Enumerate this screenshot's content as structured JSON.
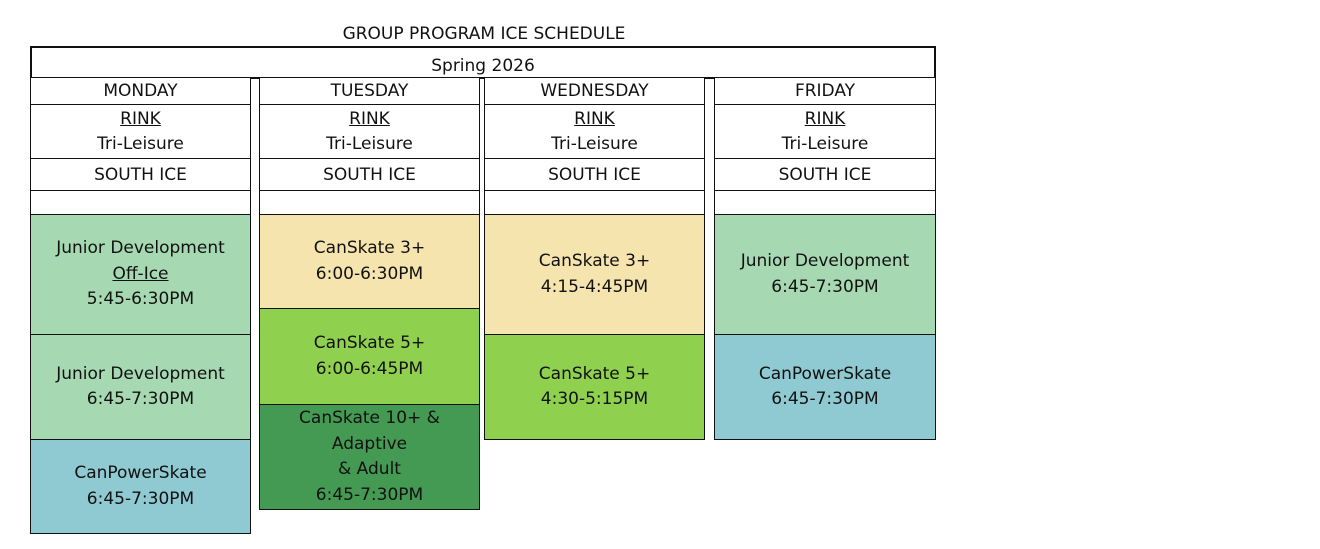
{
  "schedule": {
    "title": "GROUP PROGRAM ICE SCHEDULE",
    "season": "Spring 2026"
  },
  "columns": [
    {
      "day": "MONDAY",
      "rink_label": "RINK",
      "rink": "Tri-Leisure",
      "ice": "SOUTH ICE",
      "sessions": [
        {
          "name": "Junior Development",
          "note": "Off-Ice",
          "time": "5:45-6:30PM",
          "color": "#a6d9b2"
        },
        {
          "name": "Junior Development",
          "time": "6:45-7:30PM",
          "color": "#a6d9b2"
        },
        {
          "name": "CanPowerSkate",
          "time": "6:45-7:30PM",
          "color": "#8fc9d2"
        }
      ]
    },
    {
      "day": "TUESDAY",
      "rink_label": "RINK",
      "rink": "Tri-Leisure",
      "ice": "SOUTH ICE",
      "sessions": [
        {
          "name": "CanSkate 3+",
          "time": "6:00-6:30PM",
          "color": "#f6e4ae"
        },
        {
          "name": "CanSkate 5+",
          "time": "6:00-6:45PM",
          "color": "#8fd14f"
        },
        {
          "name_line1": "CanSkate 10+ & Adaptive",
          "name_line2": "& Adult",
          "time": "6:45-7:30PM",
          "color": "#449a53"
        }
      ]
    },
    {
      "day": "WEDNESDAY",
      "rink_label": "RINK",
      "rink": "Tri-Leisure",
      "ice": "SOUTH ICE",
      "sessions": [
        {
          "name": "CanSkate 3+",
          "time": "4:15-4:45PM",
          "color": "#f6e4ae"
        },
        {
          "name": "CanSkate 5+",
          "time": "4:30-5:15PM",
          "color": "#8fd14f"
        }
      ]
    },
    {
      "day": "FRIDAY",
      "rink_label": "RINK",
      "rink": "Tri-Leisure",
      "ice": "SOUTH ICE",
      "sessions": [
        {
          "name": "Junior Development",
          "time": "6:45-7:30PM",
          "color": "#a6d9b2"
        },
        {
          "name": "CanPowerSkate",
          "time": "6:45-7:30PM",
          "color": "#8fc9d2"
        }
      ]
    }
  ]
}
